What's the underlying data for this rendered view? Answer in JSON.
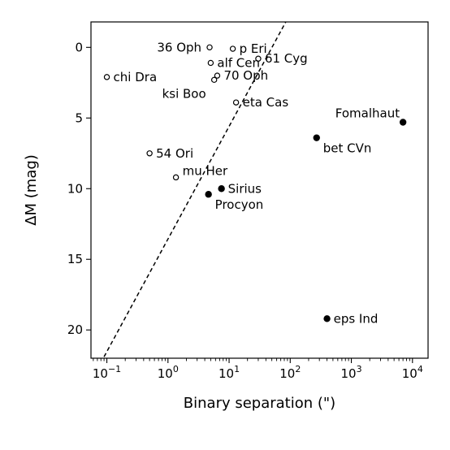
{
  "chart_data": {
    "type": "scatter",
    "xlabel": "Binary separation (\")",
    "ylabel": "ΔM (mag)",
    "xscale": "log",
    "xlim": [
      0.055,
      18000
    ],
    "ylim": [
      22,
      -1.8
    ],
    "y_inverted": true,
    "grid": false,
    "legend": "none",
    "xticks": [
      {
        "value": 0.1,
        "base": "10",
        "exp": "−1"
      },
      {
        "value": 1,
        "base": "10",
        "exp": "0"
      },
      {
        "value": 10,
        "base": "10",
        "exp": "1"
      },
      {
        "value": 100,
        "base": "10",
        "exp": "2"
      },
      {
        "value": 1000,
        "base": "10",
        "exp": "3"
      },
      {
        "value": 10000,
        "base": "10",
        "exp": "4"
      }
    ],
    "yticks": [
      {
        "value": 0,
        "label": "0"
      },
      {
        "value": 5,
        "label": "5"
      },
      {
        "value": 10,
        "label": "10"
      },
      {
        "value": 15,
        "label": "15"
      },
      {
        "value": 20,
        "label": "20"
      }
    ],
    "trend_line": {
      "style": "dashed",
      "points": [
        [
          0.09,
          21.9
        ],
        [
          95,
          -2.2
        ]
      ]
    },
    "series": [
      {
        "marker": "open",
        "points": [
          {
            "label": "p Eri",
            "x": 11.5,
            "y": 0.1,
            "anchor": "right"
          },
          {
            "label": "36 Oph",
            "x": 4.8,
            "y": 0.0,
            "anchor": "left"
          },
          {
            "label": "alf Cen",
            "x": 5.0,
            "y": 1.1,
            "anchor": "right"
          },
          {
            "label": "61 Cyg",
            "x": 30,
            "y": 0.8,
            "anchor": "right"
          },
          {
            "label": "chi Dra",
            "x": 0.1,
            "y": 2.1,
            "anchor": "right"
          },
          {
            "label": "70 Oph",
            "x": 6.4,
            "y": 2.0,
            "anchor": "right"
          },
          {
            "label": "ksi Boo",
            "x": 5.7,
            "y": 2.3,
            "anchor": "left-below"
          },
          {
            "label": "eta Cas",
            "x": 13,
            "y": 3.9,
            "anchor": "right"
          },
          {
            "label": "54 Ori",
            "x": 0.5,
            "y": 7.5,
            "anchor": "right"
          },
          {
            "label": "mu Her",
            "x": 1.35,
            "y": 9.2,
            "anchor": "right-above"
          }
        ]
      },
      {
        "marker": "filled",
        "points": [
          {
            "label": "Fomalhaut",
            "x": 7000,
            "y": 5.3,
            "anchor": "left-above"
          },
          {
            "label": "bet CVn",
            "x": 270,
            "y": 6.4,
            "anchor": "right-below"
          },
          {
            "label": "Sirius",
            "x": 7.5,
            "y": 10.0,
            "anchor": "right"
          },
          {
            "label": "Procyon",
            "x": 4.6,
            "y": 10.4,
            "anchor": "right-below"
          },
          {
            "label": "eps Ind",
            "x": 400,
            "y": 19.2,
            "anchor": "right"
          }
        ]
      }
    ]
  }
}
